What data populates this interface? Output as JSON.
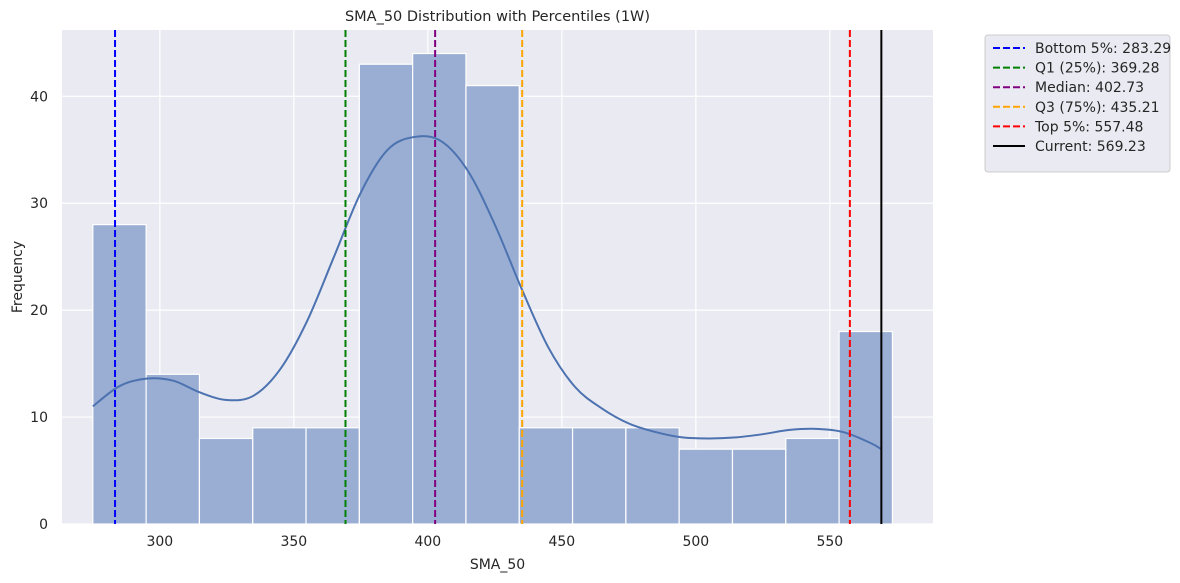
{
  "chart_data": {
    "type": "bar",
    "title": "SMA_50 Distribution with Percentiles (1W)",
    "xlabel": "SMA_50",
    "ylabel": "Frequency",
    "xlim": [
      263.5,
      588.5
    ],
    "ylim": [
      0,
      46.2
    ],
    "xticks": [
      300,
      350,
      400,
      450,
      500,
      550
    ],
    "yticks": [
      0,
      10,
      20,
      30,
      40
    ],
    "grid": true,
    "legend_position": "outside-top-right",
    "bin_start": 275.0,
    "bin_width": 19.89,
    "bar_values": [
      28,
      14,
      8,
      9,
      9,
      43,
      44,
      41,
      9,
      9,
      9,
      7,
      7,
      8,
      18
    ],
    "bar_color": "#9aaed3",
    "kde": {
      "color": "#4c72b0",
      "x": [
        275,
        285,
        295,
        305,
        315,
        325,
        335,
        345,
        355,
        365,
        375,
        385,
        395,
        405,
        415,
        425,
        435,
        445,
        455,
        465,
        475,
        485,
        495,
        505,
        515,
        525,
        535,
        545,
        555,
        565,
        569.2
      ],
      "y": [
        11.0,
        12.9,
        13.6,
        13.4,
        12.3,
        11.6,
        12.0,
        14.5,
        19.0,
        25.0,
        31.0,
        35.0,
        36.2,
        35.8,
        33.0,
        28.0,
        22.0,
        16.5,
        12.8,
        10.8,
        9.4,
        8.6,
        8.1,
        8.0,
        8.1,
        8.4,
        8.8,
        8.9,
        8.6,
        7.6,
        7.0
      ]
    },
    "vlines": [
      {
        "label": "Bottom 5%: 283.29",
        "value": 283.29,
        "color": "#0000ff",
        "dashed": true
      },
      {
        "label": "Q1 (25%): 369.28",
        "value": 369.28,
        "color": "#008000",
        "dashed": true
      },
      {
        "label": "Median: 402.73",
        "value": 402.73,
        "color": "#800080",
        "dashed": true
      },
      {
        "label": "Q3 (75%): 435.21",
        "value": 435.21,
        "color": "#ffa500",
        "dashed": true
      },
      {
        "label": "Top 5%: 557.48",
        "value": 557.48,
        "color": "#ff0000",
        "dashed": true
      },
      {
        "label": "Current: 569.23",
        "value": 569.23,
        "color": "#000000",
        "dashed": false
      }
    ]
  }
}
